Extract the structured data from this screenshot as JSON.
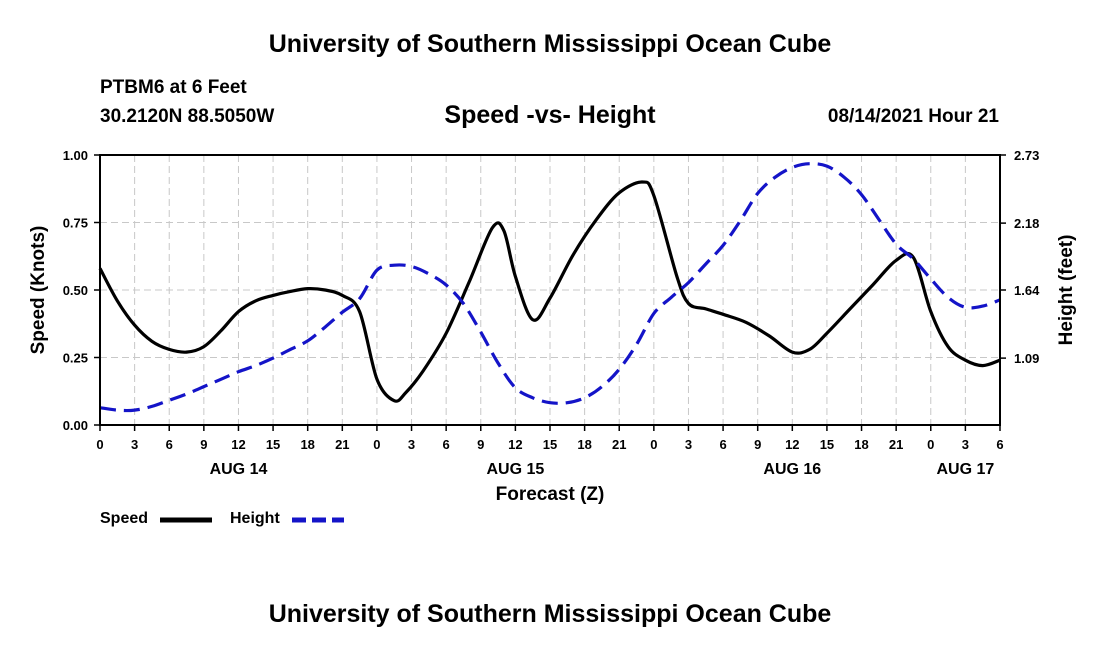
{
  "header": {
    "title": "University of Southern Mississippi Ocean Cube",
    "station": "PTBM6 at 6 Feet",
    "coordinates": "30.2120N  88.5050W",
    "chart_title": "Speed -vs- Height",
    "datetime": "08/14/2021 Hour 21"
  },
  "footer": {
    "title": "University of Southern Mississippi Ocean Cube"
  },
  "legend": {
    "speed_label": "Speed",
    "height_label": "Height"
  },
  "colors": {
    "speed": "#000000",
    "height": "#1414c8",
    "grid": "#c8c8c8"
  },
  "chart_data": {
    "type": "line",
    "title": "Speed -vs- Height",
    "xlabel": "Forecast (Z)",
    "ylabel": "Speed (Knots)",
    "y2label": "Height (feet)",
    "x_unit": "hours since 2021-08-14 00Z",
    "xlim": [
      0,
      78
    ],
    "ylim": [
      0,
      1
    ],
    "y2lim": [
      0.55,
      2.73
    ],
    "x_ticks": [
      0,
      3,
      6,
      9,
      12,
      15,
      18,
      21,
      24,
      27,
      30,
      33,
      36,
      39,
      42,
      45,
      48,
      51,
      54,
      57,
      60,
      63,
      66,
      69,
      72,
      75,
      78
    ],
    "x_tick_labels": [
      "0",
      "3",
      "6",
      "9",
      "12",
      "15",
      "18",
      "21",
      "0",
      "3",
      "6",
      "9",
      "12",
      "15",
      "18",
      "21",
      "0",
      "3",
      "6",
      "9",
      "12",
      "15",
      "18",
      "21",
      "0",
      "3",
      "6"
    ],
    "date_labels": [
      {
        "x": 12,
        "label": "AUG 14"
      },
      {
        "x": 36,
        "label": "AUG 15"
      },
      {
        "x": 60,
        "label": "AUG 16"
      },
      {
        "x": 75,
        "label": "AUG 17"
      }
    ],
    "y_ticks": [
      0,
      0.25,
      0.5,
      0.75,
      1.0
    ],
    "y_tick_labels": [
      "0.00",
      "0.25",
      "0.50",
      "0.75",
      "1.00"
    ],
    "y2_ticks": [
      1.09,
      1.64,
      2.18,
      2.73
    ],
    "y2_tick_labels": [
      "1.09",
      "1.64",
      "2.18",
      "2.73"
    ],
    "grid": true,
    "series": [
      {
        "name": "Speed",
        "axis": "left",
        "x": [
          0,
          1.5,
          3,
          4.5,
          6,
          7.5,
          9,
          10.5,
          12,
          13.5,
          15,
          16.5,
          18,
          19.5,
          21,
          22.5,
          24,
          25.5,
          26.5,
          28,
          30,
          32,
          34,
          35,
          36,
          37.5,
          39,
          41,
          43,
          45,
          47,
          48,
          50,
          51,
          52.5,
          54,
          56,
          58,
          60,
          61.5,
          63,
          65,
          67,
          69,
          70.5,
          72,
          73.5,
          75,
          76.5,
          78
        ],
        "values": [
          0.58,
          0.46,
          0.37,
          0.31,
          0.28,
          0.27,
          0.29,
          0.35,
          0.42,
          0.46,
          0.48,
          0.495,
          0.505,
          0.5,
          0.48,
          0.42,
          0.17,
          0.09,
          0.12,
          0.2,
          0.34,
          0.53,
          0.73,
          0.72,
          0.55,
          0.39,
          0.47,
          0.63,
          0.76,
          0.86,
          0.9,
          0.85,
          0.55,
          0.45,
          0.43,
          0.41,
          0.38,
          0.33,
          0.27,
          0.28,
          0.34,
          0.43,
          0.52,
          0.61,
          0.62,
          0.42,
          0.29,
          0.24,
          0.22,
          0.24
        ]
      },
      {
        "name": "Height",
        "axis": "right",
        "x": [
          0,
          1.5,
          3,
          4.5,
          6,
          7.5,
          9,
          10.5,
          12,
          13.5,
          15,
          16.5,
          18,
          19.5,
          21,
          22.5,
          24,
          25.5,
          27,
          28.5,
          30,
          31.5,
          33,
          34.5,
          36,
          37.5,
          39,
          40.5,
          42,
          43.5,
          45,
          46.5,
          48,
          49.5,
          51,
          52.5,
          54,
          55.5,
          57,
          58.5,
          60,
          61.5,
          63,
          64.5,
          66,
          67.5,
          69,
          70.5,
          72,
          73.5,
          75,
          76.5,
          78
        ],
        "values": [
          0.69,
          0.67,
          0.67,
          0.7,
          0.75,
          0.8,
          0.86,
          0.92,
          0.98,
          1.03,
          1.09,
          1.16,
          1.23,
          1.34,
          1.46,
          1.57,
          1.8,
          1.84,
          1.83,
          1.77,
          1.68,
          1.53,
          1.3,
          1.05,
          0.85,
          0.77,
          0.73,
          0.73,
          0.77,
          0.86,
          1.0,
          1.2,
          1.45,
          1.58,
          1.7,
          1.85,
          2.0,
          2.2,
          2.42,
          2.55,
          2.63,
          2.66,
          2.64,
          2.55,
          2.41,
          2.21,
          2.01,
          1.89,
          1.73,
          1.58,
          1.5,
          1.51,
          1.56
        ]
      }
    ]
  }
}
